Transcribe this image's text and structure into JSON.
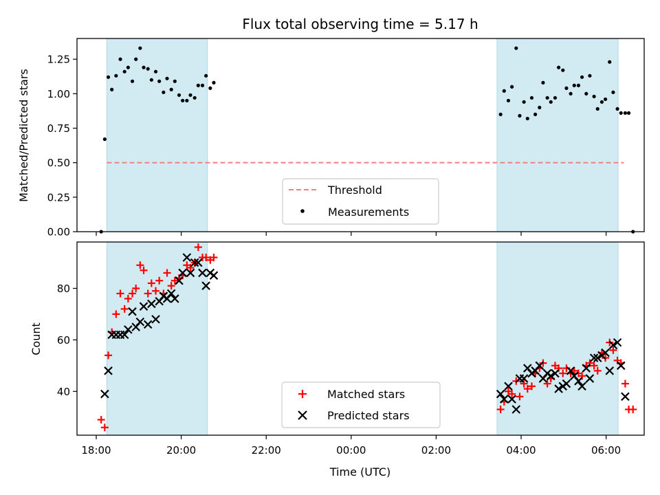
{
  "chart_data": {
    "title": "Flux total observing time = 5.17 h",
    "xlabel": "Time (UTC)",
    "x_ticks": [
      "18:00",
      "20:00",
      "22:00",
      "00:00",
      "02:00",
      "04:00",
      "06:00"
    ],
    "shaded_intervals": [
      [
        "18:15",
        "20:37"
      ],
      [
        "03:26",
        "06:17"
      ]
    ],
    "colors": {
      "shade": "#add8e6",
      "threshold": "#f08080",
      "matched": "#ff0000",
      "predicted": "#000000"
    },
    "panels": [
      {
        "type": "scatter",
        "ylabel": "Matched/Predicted stars",
        "ylim": [
          0,
          1.4
        ],
        "y_ticks": [
          "0.00",
          "0.25",
          "0.50",
          "0.75",
          "1.00",
          "1.25"
        ],
        "legend_loc": "lower-center",
        "threshold": {
          "name": "Threshold",
          "value": 0.5,
          "x_range": [
            "18:15",
            "06:25"
          ]
        },
        "series": [
          {
            "name": "Measurements",
            "points": [
              [
                "18:07",
                0.0
              ],
              [
                "18:12",
                0.67
              ],
              [
                "18:17",
                1.12
              ],
              [
                "18:22",
                1.03
              ],
              [
                "18:28",
                1.13
              ],
              [
                "18:34",
                1.25
              ],
              [
                "18:40",
                1.16
              ],
              [
                "18:45",
                1.19
              ],
              [
                "18:51",
                1.09
              ],
              [
                "18:56",
                1.25
              ],
              [
                "19:02",
                1.33
              ],
              [
                "19:07",
                1.19
              ],
              [
                "19:13",
                1.18
              ],
              [
                "19:18",
                1.1
              ],
              [
                "19:24",
                1.16
              ],
              [
                "19:29",
                1.09
              ],
              [
                "19:35",
                1.01
              ],
              [
                "19:40",
                1.11
              ],
              [
                "19:46",
                1.03
              ],
              [
                "19:51",
                1.09
              ],
              [
                "19:57",
                0.99
              ],
              [
                "20:02",
                0.95
              ],
              [
                "20:08",
                0.95
              ],
              [
                "20:13",
                0.99
              ],
              [
                "20:19",
                0.97
              ],
              [
                "20:24",
                1.06
              ],
              [
                "20:30",
                1.06
              ],
              [
                "20:35",
                1.13
              ],
              [
                "20:41",
                1.04
              ],
              [
                "20:46",
                1.08
              ],
              [
                "03:31",
                0.85
              ],
              [
                "03:36",
                1.02
              ],
              [
                "03:42",
                0.95
              ],
              [
                "03:47",
                1.05
              ],
              [
                "03:53",
                1.33
              ],
              [
                "03:58",
                0.84
              ],
              [
                "04:04",
                0.94
              ],
              [
                "04:09",
                0.82
              ],
              [
                "04:15",
                0.97
              ],
              [
                "04:20",
                0.85
              ],
              [
                "04:26",
                0.9
              ],
              [
                "04:31",
                1.08
              ],
              [
                "04:37",
                0.97
              ],
              [
                "04:42",
                0.94
              ],
              [
                "04:48",
                0.97
              ],
              [
                "04:53",
                1.19
              ],
              [
                "04:59",
                1.17
              ],
              [
                "05:04",
                1.04
              ],
              [
                "05:10",
                1.0
              ],
              [
                "05:15",
                1.06
              ],
              [
                "05:21",
                1.06
              ],
              [
                "05:26",
                1.12
              ],
              [
                "05:32",
                1.0
              ],
              [
                "05:37",
                1.13
              ],
              [
                "05:43",
                0.98
              ],
              [
                "05:48",
                0.89
              ],
              [
                "05:54",
                0.94
              ],
              [
                "05:59",
                0.96
              ],
              [
                "06:05",
                1.23
              ],
              [
                "06:10",
                1.01
              ],
              [
                "06:16",
                0.89
              ],
              [
                "06:21",
                0.86
              ],
              [
                "06:27",
                0.86
              ],
              [
                "06:32",
                0.86
              ],
              [
                "06:38",
                0.0
              ]
            ]
          }
        ]
      },
      {
        "type": "scatter",
        "ylabel": "Count",
        "ylim": [
          23,
          98
        ],
        "y_ticks": [
          "40",
          "60",
          "80"
        ],
        "legend_loc": "lower-center",
        "series": [
          {
            "name": "Matched stars",
            "marker": "+",
            "points": [
              [
                "18:07",
                29
              ],
              [
                "18:12",
                26
              ],
              [
                "18:17",
                54
              ],
              [
                "18:22",
                63
              ],
              [
                "18:28",
                70
              ],
              [
                "18:34",
                78
              ],
              [
                "18:40",
                72
              ],
              [
                "18:45",
                76
              ],
              [
                "18:51",
                78
              ],
              [
                "18:56",
                80
              ],
              [
                "19:02",
                89
              ],
              [
                "19:07",
                87
              ],
              [
                "19:13",
                78
              ],
              [
                "19:18",
                82
              ],
              [
                "19:24",
                79
              ],
              [
                "19:29",
                83
              ],
              [
                "19:35",
                78
              ],
              [
                "19:40",
                86
              ],
              [
                "19:46",
                81
              ],
              [
                "19:51",
                83
              ],
              [
                "19:57",
                84
              ],
              [
                "20:02",
                85
              ],
              [
                "20:08",
                89
              ],
              [
                "20:13",
                88
              ],
              [
                "20:19",
                90
              ],
              [
                "20:24",
                96
              ],
              [
                "20:30",
                92
              ],
              [
                "20:35",
                92
              ],
              [
                "20:41",
                91
              ],
              [
                "20:46",
                92
              ],
              [
                "03:31",
                33
              ],
              [
                "03:36",
                36
              ],
              [
                "03:42",
                40
              ],
              [
                "03:47",
                39
              ],
              [
                "03:53",
                44
              ],
              [
                "03:58",
                38
              ],
              [
                "04:04",
                43
              ],
              [
                "04:09",
                41
              ],
              [
                "04:15",
                42
              ],
              [
                "04:20",
                47
              ],
              [
                "04:26",
                49
              ],
              [
                "04:31",
                51
              ],
              [
                "04:37",
                43
              ],
              [
                "04:42",
                45
              ],
              [
                "04:48",
                50
              ],
              [
                "04:53",
                49
              ],
              [
                "04:59",
                47
              ],
              [
                "05:04",
                49
              ],
              [
                "05:10",
                47
              ],
              [
                "05:15",
                48
              ],
              [
                "05:21",
                47
              ],
              [
                "05:26",
                46
              ],
              [
                "05:32",
                50
              ],
              [
                "05:37",
                51
              ],
              [
                "05:43",
                50
              ],
              [
                "05:48",
                48
              ],
              [
                "05:54",
                55
              ],
              [
                "05:59",
                53
              ],
              [
                "06:05",
                59
              ],
              [
                "06:10",
                56
              ],
              [
                "06:16",
                52
              ],
              [
                "06:21",
                51
              ],
              [
                "06:27",
                43
              ],
              [
                "06:32",
                33
              ],
              [
                "06:38",
                33
              ]
            ]
          },
          {
            "name": "Predicted stars",
            "marker": "x",
            "points": [
              [
                "18:12",
                39
              ],
              [
                "18:17",
                48
              ],
              [
                "18:22",
                62
              ],
              [
                "18:28",
                62
              ],
              [
                "18:34",
                62
              ],
              [
                "18:40",
                62
              ],
              [
                "18:45",
                64
              ],
              [
                "18:51",
                71
              ],
              [
                "18:56",
                65
              ],
              [
                "19:02",
                67
              ],
              [
                "19:07",
                73
              ],
              [
                "19:13",
                66
              ],
              [
                "19:18",
                74
              ],
              [
                "19:24",
                68
              ],
              [
                "19:29",
                75
              ],
              [
                "19:35",
                77
              ],
              [
                "19:40",
                76
              ],
              [
                "19:46",
                78
              ],
              [
                "19:51",
                76
              ],
              [
                "19:57",
                83
              ],
              [
                "20:02",
                86
              ],
              [
                "20:08",
                92
              ],
              [
                "20:13",
                86
              ],
              [
                "20:19",
                90
              ],
              [
                "20:24",
                90
              ],
              [
                "20:30",
                86
              ],
              [
                "20:35",
                81
              ],
              [
                "20:41",
                86
              ],
              [
                "20:46",
                85
              ],
              [
                "03:31",
                39
              ],
              [
                "03:36",
                37
              ],
              [
                "03:42",
                42
              ],
              [
                "03:47",
                37
              ],
              [
                "03:53",
                33
              ],
              [
                "03:58",
                45
              ],
              [
                "04:04",
                45
              ],
              [
                "04:09",
                49
              ],
              [
                "04:15",
                47
              ],
              [
                "04:20",
                48
              ],
              [
                "04:26",
                50
              ],
              [
                "04:31",
                45
              ],
              [
                "04:37",
                47
              ],
              [
                "04:42",
                46
              ],
              [
                "04:48",
                47
              ],
              [
                "04:53",
                41
              ],
              [
                "04:59",
                42
              ],
              [
                "05:04",
                43
              ],
              [
                "05:10",
                48
              ],
              [
                "05:15",
                46
              ],
              [
                "05:21",
                44
              ],
              [
                "05:26",
                42
              ],
              [
                "05:32",
                49
              ],
              [
                "05:37",
                45
              ],
              [
                "05:43",
                53
              ],
              [
                "05:48",
                53
              ],
              [
                "05:54",
                54
              ],
              [
                "05:59",
                55
              ],
              [
                "06:05",
                48
              ],
              [
                "06:10",
                58
              ],
              [
                "06:16",
                59
              ],
              [
                "06:21",
                50
              ],
              [
                "06:27",
                38
              ]
            ]
          }
        ]
      }
    ]
  }
}
